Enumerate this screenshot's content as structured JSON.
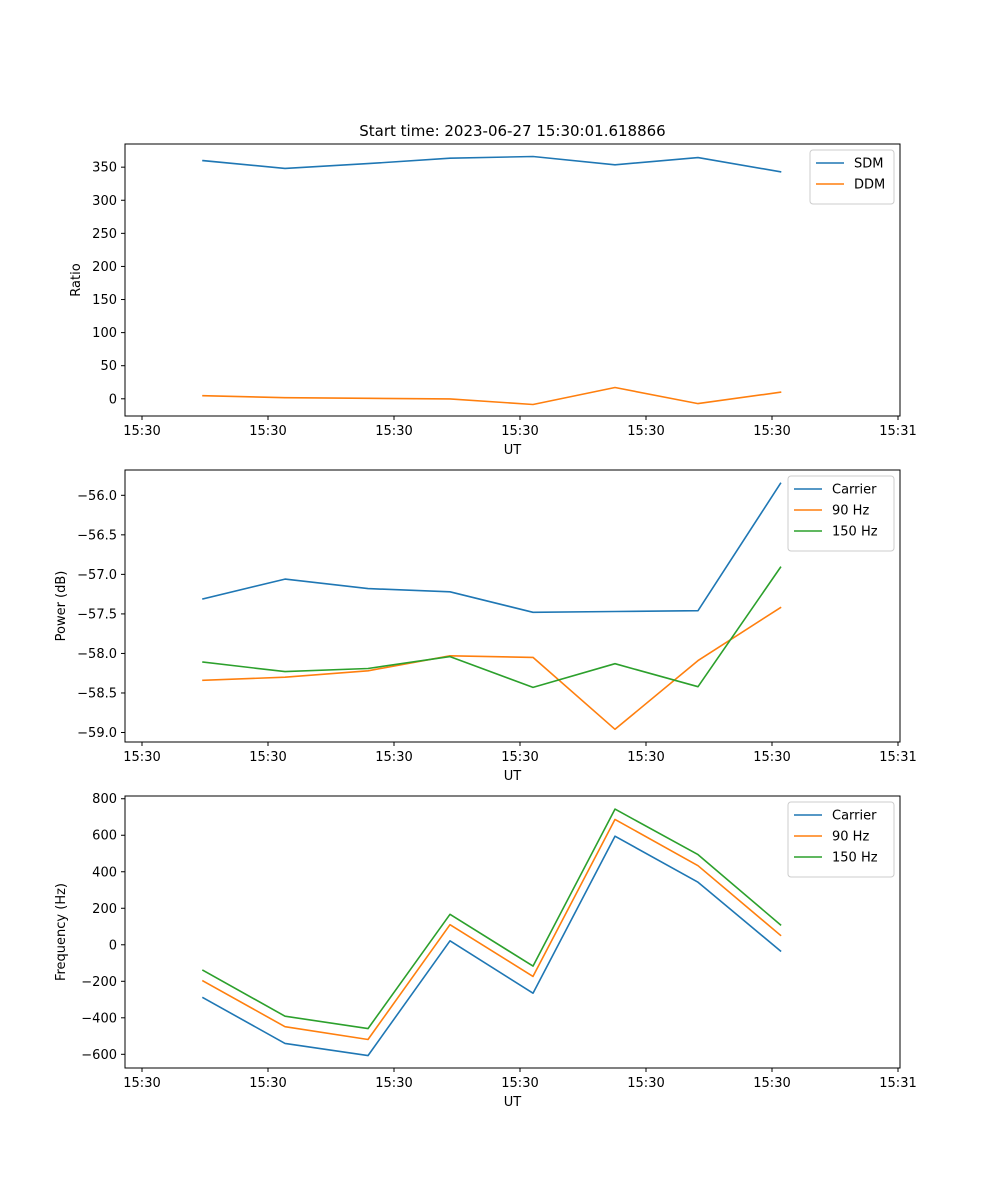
{
  "figure": {
    "title": "Start time: 2023-06-27 15:30:01.618866"
  },
  "chart_data": [
    {
      "type": "line",
      "xlabel": "UT",
      "ylabel": "Ratio",
      "xtick_labels": [
        "15:30",
        "15:30",
        "15:30",
        "15:30",
        "15:30",
        "15:30",
        "15:31"
      ],
      "ylim": [
        -26,
        385
      ],
      "yticks": [
        0,
        50,
        100,
        150,
        200,
        250,
        300,
        350
      ],
      "legend_position": "upper right",
      "series": [
        {
          "name": "SDM",
          "color": "#1f77b4",
          "values": [
            359.9,
            348.1,
            355.4,
            363.5,
            366.1,
            353.6,
            364.4,
            343.0
          ]
        },
        {
          "name": "DDM",
          "color": "#ff7f0e",
          "values": [
            4.7,
            1.6,
            0.7,
            -0.2,
            -8.6,
            17.0,
            -7.2,
            10.0
          ]
        }
      ]
    },
    {
      "type": "line",
      "xlabel": "UT",
      "ylabel": "Power (dB)",
      "xtick_labels": [
        "15:30",
        "15:30",
        "15:30",
        "15:30",
        "15:30",
        "15:30",
        "15:31"
      ],
      "ylim": [
        -59.12,
        -55.68
      ],
      "yticks": [
        -59.0,
        -58.5,
        -58.0,
        -57.5,
        -57.0,
        -56.5,
        -56.0
      ],
      "legend_position": "upper right",
      "series": [
        {
          "name": "Carrier",
          "color": "#1f77b4",
          "values": [
            -57.31,
            -57.06,
            -57.18,
            -57.22,
            -57.48,
            -57.47,
            -57.46,
            -55.85
          ]
        },
        {
          "name": "90 Hz",
          "color": "#ff7f0e",
          "values": [
            -58.34,
            -58.3,
            -58.22,
            -58.03,
            -58.05,
            -58.96,
            -58.09,
            -57.42
          ]
        },
        {
          "name": "150 Hz",
          "color": "#2ca02c",
          "values": [
            -58.11,
            -58.23,
            -58.19,
            -58.04,
            -58.43,
            -58.13,
            -58.42,
            -56.91
          ]
        }
      ]
    },
    {
      "type": "line",
      "xlabel": "UT",
      "ylabel": "Frequency (Hz)",
      "xtick_labels": [
        "15:30",
        "15:30",
        "15:30",
        "15:30",
        "15:30",
        "15:30",
        "15:31"
      ],
      "ylim": [
        -675,
        815
      ],
      "yticks": [
        -600,
        -400,
        -200,
        0,
        200,
        400,
        600,
        800
      ],
      "legend_position": "upper right",
      "series": [
        {
          "name": "Carrier",
          "color": "#1f77b4",
          "values": [
            -290,
            -540,
            -607,
            22,
            -265,
            595,
            343,
            -34
          ]
        },
        {
          "name": "90 Hz",
          "color": "#ff7f0e",
          "values": [
            -198,
            -449,
            -519,
            110,
            -173,
            687,
            433,
            52
          ]
        },
        {
          "name": "150 Hz",
          "color": "#2ca02c",
          "values": [
            -140,
            -391,
            -459,
            167,
            -117,
            743,
            494,
            109
          ]
        }
      ]
    }
  ]
}
